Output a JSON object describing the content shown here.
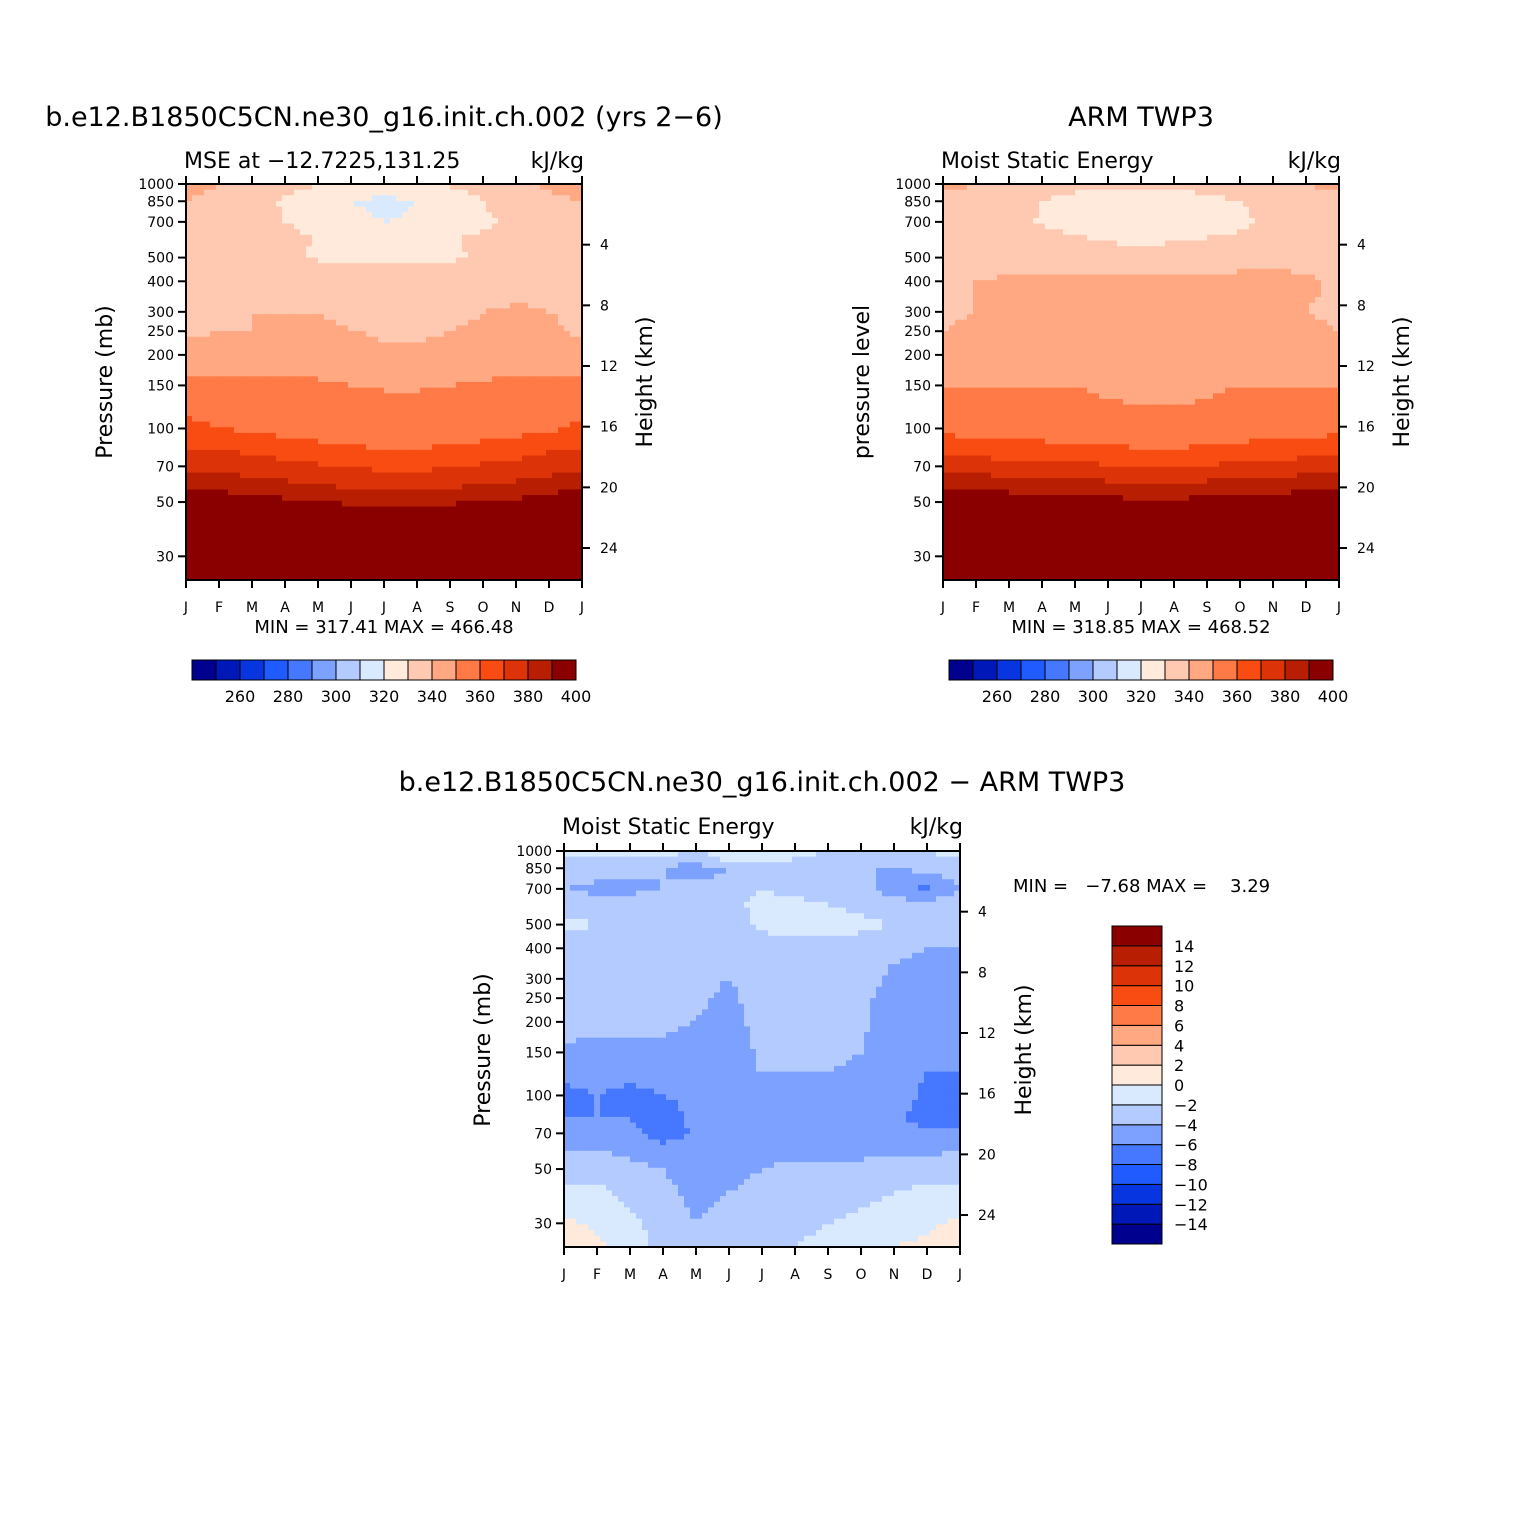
{
  "chart_data": [
    {
      "type": "heatmap",
      "title": "b.e12.B1850C5CN.ne30_g16.init.ch.002 (yrs 2-6)",
      "subtitle_left": "MSE at -12.7225,131.25",
      "units": "kJ/kg",
      "ylabel_left": "Pressure (mb)",
      "ylabel_right": "Height (km)",
      "x_ticks": [
        "J",
        "F",
        "M",
        "A",
        "M",
        "J",
        "J",
        "A",
        "S",
        "O",
        "N",
        "D",
        "J"
      ],
      "pressure_ticks": [
        30,
        50,
        70,
        100,
        150,
        200,
        250,
        300,
        400,
        500,
        700,
        850,
        1000
      ],
      "height_ticks": [
        24,
        20,
        16,
        12,
        8,
        4
      ],
      "yscale": "log",
      "ylim": [
        1000,
        24
      ],
      "minmax_text": "MIN = 317.41 MAX = 466.48",
      "min": 317.41,
      "max": 466.48,
      "colorbar_ticks": [
        260,
        280,
        300,
        320,
        340,
        360,
        380,
        400
      ],
      "levels": [
        250,
        260,
        270,
        280,
        290,
        300,
        310,
        320,
        330,
        340,
        350,
        360,
        370,
        380,
        390,
        400
      ],
      "colors": [
        "#00008f",
        "#0018b7",
        "#0735e0",
        "#1f5bff",
        "#4677ff",
        "#7da1ff",
        "#b3cbff",
        "#d9eaff",
        "#ffeadb",
        "#ffc8b0",
        "#ffa882",
        "#ff7a46",
        "#f84c12",
        "#dc3408",
        "#b81f02",
        "#8a0000"
      ],
      "months": [
        0,
        1,
        2,
        3,
        4,
        5,
        6,
        7,
        8,
        9,
        10,
        11,
        12
      ],
      "p_levels": [
        1000,
        925,
        850,
        700,
        600,
        500,
        400,
        300,
        250,
        200,
        150,
        100,
        80,
        70,
        60,
        50,
        40,
        30,
        24
      ],
      "values": [
        [
          342,
          340,
          336,
          334,
          330,
          328,
          326,
          327,
          331,
          335,
          339,
          341,
          342
        ],
        [
          341,
          339,
          335,
          331,
          327,
          324,
          322,
          323,
          327,
          332,
          337,
          340,
          341
        ],
        [
          340,
          338,
          334,
          329,
          324,
          320,
          318,
          320,
          325,
          330,
          335,
          339,
          340
        ],
        [
          337,
          336,
          333,
          330,
          326,
          322,
          320,
          321,
          324,
          328,
          332,
          335,
          337
        ],
        [
          339,
          338,
          336,
          333,
          329,
          327,
          326,
          327,
          329,
          332,
          335,
          337,
          339
        ],
        [
          338,
          337,
          335,
          332,
          329,
          328,
          328,
          328,
          329,
          331,
          334,
          336,
          338
        ],
        [
          340,
          339,
          338,
          337,
          336,
          335,
          335,
          335,
          335,
          336,
          337,
          338,
          340
        ],
        [
          339,
          339,
          340,
          340,
          340,
          339,
          338,
          338,
          338,
          340,
          341,
          340,
          339
        ],
        [
          339,
          340,
          340,
          341,
          341,
          340,
          339,
          339,
          340,
          341,
          342,
          341,
          339
        ],
        [
          342,
          342,
          343,
          344,
          346,
          344,
          341,
          341,
          342,
          344,
          346,
          344,
          342
        ],
        [
          354,
          354,
          353,
          352,
          351,
          350,
          350,
          350,
          350,
          351,
          352,
          353,
          354
        ],
        [
          362,
          360,
          358,
          356,
          354,
          352,
          350,
          350,
          352,
          354,
          356,
          358,
          362
        ],
        [
          372,
          371,
          369,
          367,
          365,
          363,
          362,
          362,
          363,
          365,
          367,
          370,
          372
        ],
        [
          378,
          377,
          375,
          373,
          371,
          369,
          368,
          368,
          369,
          371,
          373,
          376,
          378
        ],
        [
          386,
          385,
          383,
          381,
          379,
          377,
          376,
          376,
          377,
          379,
          381,
          383,
          386
        ],
        [
          398,
          396,
          394,
          392,
          390,
          388,
          386,
          386,
          388,
          390,
          392,
          395,
          398
        ],
        [
          420,
          420,
          418,
          416,
          414,
          412,
          411,
          411,
          412,
          414,
          416,
          418,
          420
        ],
        [
          440,
          440,
          440,
          440,
          440,
          440,
          440,
          440,
          440,
          440,
          440,
          440,
          440
        ],
        [
          460,
          460,
          460,
          460,
          460,
          460,
          460,
          460,
          460,
          460,
          460,
          460,
          460
        ]
      ]
    },
    {
      "type": "heatmap",
      "title": "ARM TWP3",
      "subtitle_left": "Moist Static Energy",
      "units": "kJ/kg",
      "ylabel_left": "pressure level",
      "ylabel_right": "Height (km)",
      "x_ticks": [
        "J",
        "F",
        "M",
        "A",
        "M",
        "J",
        "J",
        "A",
        "S",
        "O",
        "N",
        "D",
        "J"
      ],
      "pressure_ticks": [
        30,
        50,
        70,
        100,
        150,
        200,
        250,
        300,
        400,
        500,
        700,
        850,
        1000
      ],
      "height_ticks": [
        24,
        20,
        16,
        12,
        8,
        4
      ],
      "yscale": "log",
      "ylim": [
        1000,
        24
      ],
      "minmax_text": "MIN = 318.85 MAX = 468.52",
      "min": 318.85,
      "max": 468.52,
      "colorbar_ticks": [
        260,
        280,
        300,
        320,
        340,
        360,
        380,
        400
      ],
      "levels": [
        250,
        260,
        270,
        280,
        290,
        300,
        310,
        320,
        330,
        340,
        350,
        360,
        370,
        380,
        390,
        400
      ],
      "colors": [
        "#00008f",
        "#0018b7",
        "#0735e0",
        "#1f5bff",
        "#4677ff",
        "#7da1ff",
        "#b3cbff",
        "#d9eaff",
        "#ffeadb",
        "#ffc8b0",
        "#ffa882",
        "#ff7a46",
        "#f84c12",
        "#dc3408",
        "#b81f02",
        "#8a0000"
      ],
      "months": [
        0,
        1,
        2,
        3,
        4,
        5,
        6,
        7,
        8,
        9,
        10,
        11,
        12
      ],
      "p_levels": [
        1000,
        925,
        850,
        700,
        600,
        500,
        400,
        300,
        250,
        200,
        150,
        100,
        80,
        70,
        60,
        50,
        40,
        30,
        24
      ],
      "values": [
        [
          341,
          340,
          338,
          336,
          334,
          333,
          332,
          333,
          335,
          337,
          339,
          340,
          341
        ],
        [
          340,
          339,
          336,
          333,
          330,
          328,
          327,
          328,
          331,
          334,
          337,
          339,
          340
        ],
        [
          339,
          337,
          334,
          330,
          326,
          323,
          322,
          323,
          326,
          330,
          334,
          337,
          339
        ],
        [
          336,
          335,
          333,
          329,
          325,
          322,
          320,
          321,
          324,
          328,
          332,
          335,
          336
        ],
        [
          338,
          337,
          336,
          334,
          331,
          329,
          328,
          329,
          330,
          332,
          335,
          337,
          338
        ],
        [
          337,
          337,
          337,
          336,
          335,
          334,
          333,
          334,
          334,
          336,
          337,
          337,
          337
        ],
        [
          339,
          340,
          341,
          342,
          343,
          342,
          342,
          342,
          342,
          343,
          343,
          341,
          339
        ],
        [
          339,
          340,
          341,
          342,
          343,
          343,
          343,
          343,
          343,
          343,
          342,
          340,
          339
        ],
        [
          340,
          341,
          342,
          343,
          344,
          344,
          343,
          343,
          343,
          343,
          342,
          341,
          340
        ],
        [
          341,
          342,
          343,
          344,
          345,
          345,
          344,
          344,
          344,
          344,
          343,
          342,
          341
        ],
        [
          350,
          350,
          350,
          350,
          350,
          349,
          349,
          349,
          349,
          350,
          350,
          350,
          350
        ],
        [
          357,
          356,
          355,
          354,
          353,
          352,
          351,
          351,
          352,
          354,
          355,
          356,
          357
        ],
        [
          368,
          367,
          366,
          365,
          364,
          363,
          362,
          362,
          363,
          364,
          366,
          367,
          368
        ],
        [
          376,
          375,
          374,
          373,
          372,
          371,
          370,
          370,
          371,
          372,
          373,
          375,
          376
        ],
        [
          386,
          385,
          384,
          383,
          382,
          381,
          380,
          380,
          381,
          382,
          383,
          385,
          386
        ],
        [
          398,
          397,
          396,
          395,
          394,
          393,
          392,
          392,
          393,
          394,
          395,
          397,
          398
        ],
        [
          420,
          420,
          419,
          418,
          417,
          416,
          415,
          415,
          416,
          417,
          418,
          419,
          420
        ],
        [
          440,
          440,
          440,
          440,
          440,
          440,
          440,
          440,
          440,
          440,
          440,
          440,
          440
        ],
        [
          460,
          460,
          460,
          460,
          460,
          460,
          460,
          460,
          460,
          460,
          460,
          460,
          460
        ]
      ]
    },
    {
      "type": "heatmap",
      "title": "b.e12.B1850C5CN.ne30_g16.init.ch.002 - ARM TWP3",
      "subtitle_left": "Moist Static Energy",
      "units": "kJ/kg",
      "ylabel_left": "Pressure (mb)",
      "ylabel_right": "Height (km)",
      "x_ticks": [
        "J",
        "F",
        "M",
        "A",
        "M",
        "J",
        "J",
        "A",
        "S",
        "O",
        "N",
        "D",
        "J"
      ],
      "pressure_ticks": [
        30,
        50,
        70,
        100,
        150,
        200,
        250,
        300,
        400,
        500,
        700,
        850,
        1000
      ],
      "height_ticks": [
        24,
        20,
        16,
        12,
        8,
        4
      ],
      "yscale": "log",
      "ylim": [
        1000,
        24
      ],
      "minmax_text": "MIN =   -7.68 MAX =    3.29",
      "min": -7.68,
      "max": 3.29,
      "colorbar_ticks": [
        14,
        12,
        10,
        8,
        6,
        4,
        2,
        0,
        -2,
        -4,
        -6,
        -8,
        -10,
        -12,
        -14
      ],
      "levels": [
        -14,
        -12,
        -10,
        -8,
        -6,
        -4,
        -2,
        0,
        2,
        4,
        6,
        8,
        10,
        12,
        14
      ],
      "colors": [
        "#00008f",
        "#0018b7",
        "#0735e0",
        "#1f5bff",
        "#4677ff",
        "#7da1ff",
        "#b3cbff",
        "#d9eaff",
        "#ffeadb",
        "#ffc8b0",
        "#ffa882",
        "#ff7a46",
        "#f84c12",
        "#dc3408",
        "#b81f02",
        "#8a0000"
      ],
      "months": [
        0,
        1,
        2,
        3,
        4,
        5,
        6,
        7,
        8,
        9,
        10,
        11,
        12
      ],
      "p_levels": [
        1000,
        925,
        850,
        700,
        600,
        500,
        400,
        300,
        250,
        200,
        150,
        100,
        80,
        70,
        60,
        50,
        40,
        30,
        24
      ],
      "values": [
        [
          -1,
          -1.5,
          -1.5,
          -1,
          -2,
          -1.5,
          -0.5,
          -1.5,
          -2,
          -2,
          -3,
          -2,
          -1
        ],
        [
          -2.5,
          -2.5,
          -2,
          -3,
          -3,
          -1.5,
          -1,
          -2,
          -2.5,
          -2.5,
          -3,
          -2.5,
          -2.5
        ],
        [
          -3,
          -3,
          -3.5,
          -4,
          -5,
          -4,
          -3,
          -3.5,
          -4,
          -4,
          -4,
          -3.5,
          -3
        ],
        [
          -4,
          -4.5,
          -4.5,
          -4,
          -3.5,
          -3,
          -2,
          -2.5,
          -3,
          -3,
          -5,
          -6.5,
          -4
        ],
        [
          -3,
          -3,
          -3,
          -3,
          -3,
          -2.5,
          -1.5,
          -1.5,
          -2,
          -2.5,
          -3,
          -3,
          -3
        ],
        [
          -1.5,
          -2,
          -3,
          -3,
          -3,
          -3,
          -1.5,
          -1,
          -1,
          -1.5,
          -2,
          -3,
          -2.5
        ],
        [
          -3,
          -3,
          -3,
          -3,
          -3,
          -3,
          -3,
          -3,
          -3,
          -3,
          -3.5,
          -4,
          -4
        ],
        [
          -3,
          -3,
          -3,
          -3,
          -3.5,
          -4,
          -3,
          -3,
          -3,
          -3,
          -4.5,
          -5,
          -4.5
        ],
        [
          -3,
          -3,
          -3,
          -3,
          -3.5,
          -4.5,
          -3,
          -3,
          -3,
          -3.5,
          -5,
          -5.5,
          -5
        ],
        [
          -3,
          -3.5,
          -3.5,
          -3.5,
          -4,
          -5,
          -3,
          -3,
          -3,
          -3.5,
          -5.5,
          -6,
          -5.5
        ],
        [
          -4.5,
          -4.5,
          -4.5,
          -4.5,
          -5,
          -5.5,
          -3.5,
          -3.5,
          -3.5,
          -4,
          -5.5,
          -5.5,
          -5
        ],
        [
          -6.5,
          -6,
          -6.5,
          -6,
          -5.5,
          -4.5,
          -4.5,
          -4.5,
          -4.5,
          -5,
          -5,
          -6.5,
          -7
        ],
        [
          -6,
          -6,
          -6,
          -7,
          -5.5,
          -5,
          -5,
          -5,
          -5,
          -5,
          -5.5,
          -7,
          -7
        ],
        [
          -5,
          -5,
          -5,
          -7.5,
          -5.5,
          -5,
          -5,
          -5,
          -5,
          -5,
          -5,
          -5.5,
          -5
        ],
        [
          -4,
          -4,
          -4.5,
          -5,
          -5,
          -5,
          -5,
          -4.5,
          -4.5,
          -4.5,
          -4.5,
          -4.5,
          -4
        ],
        [
          -3,
          -3,
          -3.5,
          -4,
          -5,
          -4.5,
          -4,
          -3.5,
          -3.5,
          -3.5,
          -3,
          -3,
          -3
        ],
        [
          -1.5,
          -1.5,
          -2.5,
          -3.5,
          -4.5,
          -4,
          -3.5,
          -3,
          -3,
          -2.5,
          -2,
          -1.5,
          -1.5
        ],
        [
          0.5,
          -0.5,
          -1.5,
          -3,
          -4,
          -3.5,
          -3,
          -2.5,
          -2,
          -1.5,
          -1,
          -0.5,
          0.5
        ],
        [
          1.5,
          0.5,
          -1,
          -2.5,
          -3.5,
          -3,
          -2.5,
          -2,
          -1.5,
          -1,
          0,
          0.5,
          1.5
        ]
      ]
    }
  ]
}
